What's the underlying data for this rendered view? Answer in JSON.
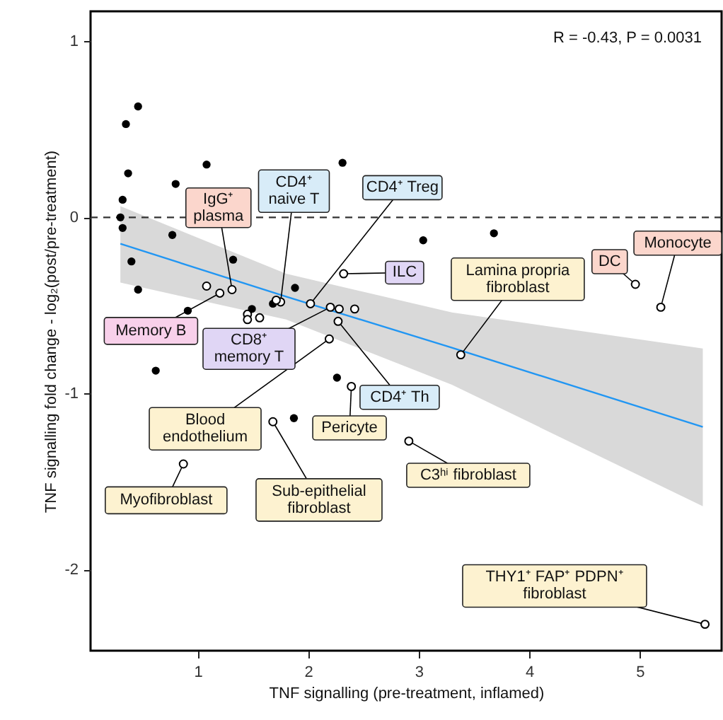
{
  "chart_data": {
    "type": "scatter",
    "xlabel": "TNF signalling (pre-treatment, inflamed)",
    "ylabel": "TNF signalling fold change - log₂(post/pre-treatment)",
    "xlim": [
      0.03,
      5.74
    ],
    "ylim": [
      -2.46,
      1.17
    ],
    "xticks": [
      1,
      2,
      3,
      4,
      5
    ],
    "yticks": [
      -2,
      -1,
      0,
      1
    ],
    "marker": "circle",
    "series": [
      {
        "color": "#000000",
        "x": [
          0.46,
          0.35,
          0.37,
          1.08,
          2.31,
          0.8,
          0.32,
          0.3,
          0.32,
          0.77,
          3.04,
          3.68,
          0.4,
          1.32,
          0.46,
          1.88,
          0.91,
          1.49,
          1.68,
          0.62,
          2.26,
          1.87
        ],
        "values": [
          0.63,
          0.53,
          0.25,
          0.3,
          0.31,
          0.19,
          0.1,
          0.0,
          -0.06,
          -0.1,
          -0.13,
          -0.09,
          -0.25,
          -0.24,
          -0.41,
          -0.4,
          -0.53,
          -0.52,
          -0.49,
          -0.87,
          -0.91,
          -1.14
        ]
      },
      {
        "color": "#ffffff",
        "x": [
          1.31,
          1.2,
          1.75,
          2.02,
          2.32,
          2.2,
          2.27,
          2.19,
          2.39,
          1.68,
          0.87,
          2.91,
          3.38,
          4.96,
          5.19,
          5.59,
          1.08,
          1.71,
          1.45,
          1.56,
          1.45,
          2.28,
          2.42
        ],
        "values": [
          -0.41,
          -0.43,
          -0.48,
          -0.49,
          -0.32,
          -0.51,
          -0.59,
          -0.69,
          -0.96,
          -1.16,
          -1.4,
          -1.27,
          -0.78,
          -0.38,
          -0.51,
          -2.31,
          -0.39,
          -0.47,
          -0.55,
          -0.57,
          -0.58,
          -0.52,
          -0.52
        ]
      },
      {
        "type": "line",
        "marker": "none",
        "color": "#2196f3",
        "x": [
          0.3,
          1.8,
          3.3,
          5.57
        ],
        "values": [
          -0.15,
          -0.45,
          -0.74,
          -1.19
        ],
        "lower": [
          -0.37,
          -0.58,
          -0.95,
          -1.64
        ],
        "upper": [
          0.064,
          -0.32,
          -0.54,
          -0.744
        ]
      }
    ],
    "ref_lines": [
      {
        "axis": "y",
        "value": 0,
        "color": "#333333",
        "line_style": "dashed"
      }
    ],
    "annotations": [
      "R = -0.43, P = 0.0031",
      {
        "text": "IgG⁺\nplasma",
        "x": 1.31,
        "y": -0.41
      },
      {
        "text": "Memory B",
        "x": 1.2,
        "y": -0.43
      },
      {
        "text": "CD4⁺\nnaive T",
        "x": 1.75,
        "y": -0.48
      },
      {
        "text": "CD4⁺ Treg",
        "x": 2.02,
        "y": -0.49
      },
      {
        "text": "ILC",
        "x": 2.32,
        "y": -0.32
      },
      {
        "text": "CD8⁺\nmemory T",
        "x": 2.2,
        "y": -0.51
      },
      {
        "text": "CD4⁺ Th",
        "x": 2.27,
        "y": -0.59
      },
      {
        "text": "Blood\nendothelium",
        "x": 2.19,
        "y": -0.69
      },
      {
        "text": "Pericyte",
        "x": 2.39,
        "y": -0.96
      },
      {
        "text": "Sub-epithelial\nfibroblast",
        "x": 1.68,
        "y": -1.16
      },
      {
        "text": "Myofibroblast",
        "x": 0.87,
        "y": -1.4
      },
      {
        "text": "C3ʰⁱ fibroblast",
        "x": 2.91,
        "y": -1.27
      },
      {
        "text": "Lamina propria\nfibroblast",
        "x": 3.38,
        "y": -0.78
      },
      {
        "text": "DC",
        "x": 4.96,
        "y": -0.38
      },
      {
        "text": "Monocyte",
        "x": 5.19,
        "y": -0.51
      },
      {
        "text": "THY1⁺ FAP⁺ PDPN⁺\nfibroblast",
        "x": 5.59,
        "y": -2.31
      }
    ]
  }
}
